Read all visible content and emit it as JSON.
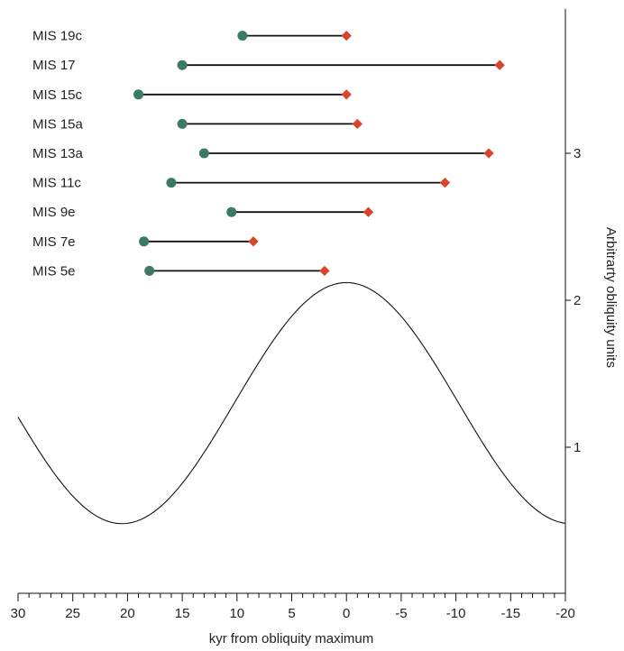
{
  "chart_data": {
    "type": "scatter",
    "title": "",
    "xlabel": "kyr from obliquity maximum",
    "ylabel": "Arbitrarty obliquity units",
    "x_axis": {
      "range": [
        30,
        -20
      ],
      "reversed": true,
      "tick_values": [
        30,
        25,
        20,
        15,
        10,
        5,
        0,
        -5,
        -10,
        -15,
        -20
      ],
      "tick_labels": [
        "30",
        "25",
        "20",
        "15",
        "10",
        "5",
        "0",
        "-5",
        "-10",
        "-15",
        "-20"
      ],
      "minor_step": 1
    },
    "y_axis": {
      "side": "right",
      "range": [
        0,
        4
      ],
      "tick_values": [
        1,
        2,
        3
      ],
      "tick_labels": [
        "1",
        "2",
        "3"
      ]
    },
    "grid": false,
    "legend": "none",
    "colors": {
      "start_marker": "#3d7a66",
      "end_marker": "#d9452b",
      "bar_line": "#111111",
      "curve": "#111111"
    },
    "curve": {
      "name": "obliquity",
      "shape": "cosine",
      "period_kyr": 41,
      "center_x": 0,
      "mean": 1.3,
      "amplitude": 0.82
    },
    "intervals": [
      {
        "label": "MIS 19c",
        "start": 9.5,
        "end": 0,
        "y": 3.8
      },
      {
        "label": "MIS 17",
        "start": 15,
        "end": -14,
        "y": 3.6
      },
      {
        "label": "MIS 15c",
        "start": 19,
        "end": 0,
        "y": 3.4
      },
      {
        "label": "MIS 15a",
        "start": 15,
        "end": -1,
        "y": 3.2
      },
      {
        "label": "MIS 13a",
        "start": 13,
        "end": -13,
        "y": 3.0
      },
      {
        "label": "MIS 11c",
        "start": 16,
        "end": -9,
        "y": 2.8
      },
      {
        "label": "MIS 9e",
        "start": 10.5,
        "end": -2,
        "y": 2.6
      },
      {
        "label": "MIS 7e",
        "start": 18.5,
        "end": 8.5,
        "y": 2.4
      },
      {
        "label": "MIS 5e",
        "start": 18,
        "end": 2,
        "y": 2.2
      }
    ]
  }
}
